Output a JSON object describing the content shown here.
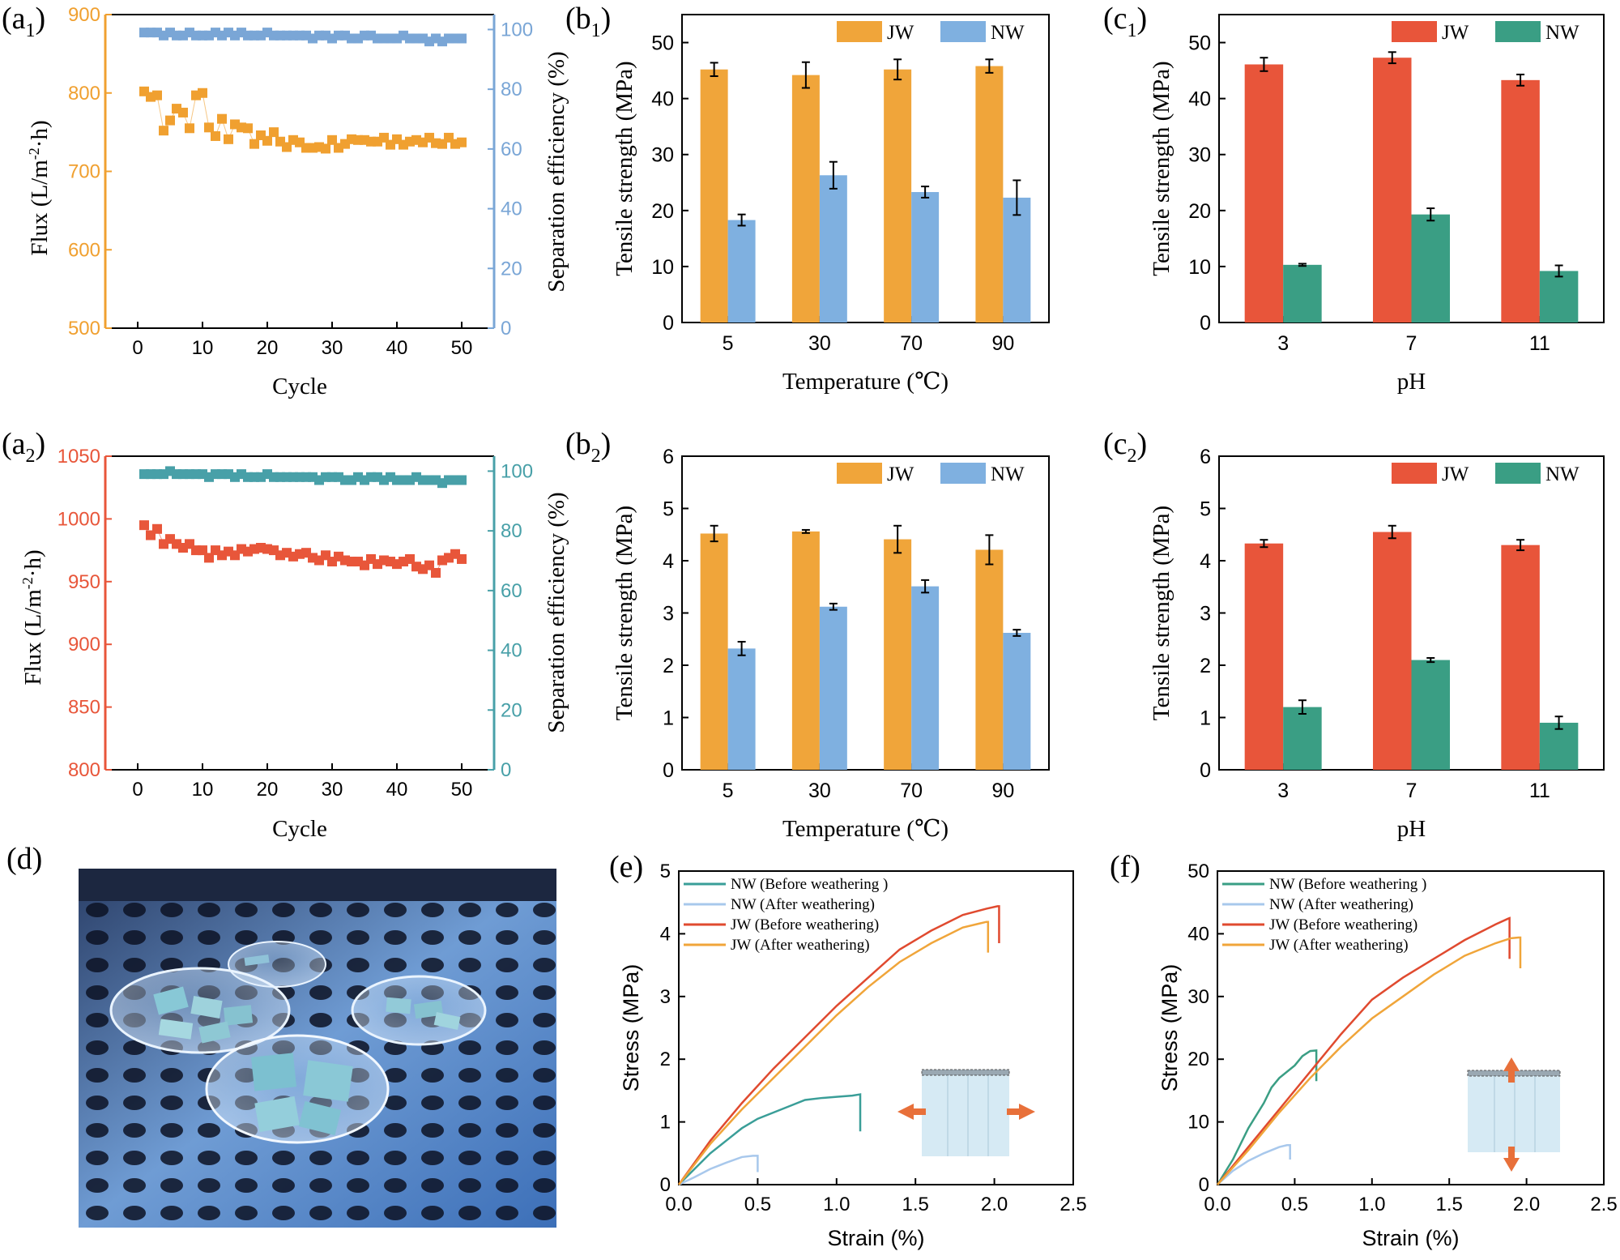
{
  "panels": {
    "a1": {
      "label": "(a",
      "label_sub": "1",
      "label_close": ")",
      "xlabel": "Cycle",
      "ylabel_left": "Flux (L/m",
      "ylabel_left_sup": "-2",
      "ylabel_left_tail": "·h)",
      "ylabel_right": "Separation efficiency (%)",
      "color_flux": "#f0a030",
      "color_eff": "#7aa6d6",
      "x_ticks": [
        0,
        10,
        20,
        30,
        40,
        50
      ],
      "y_left_ticks": [
        500,
        600,
        700,
        800,
        900
      ],
      "y_right_ticks": [
        0,
        20,
        40,
        60,
        80,
        100
      ]
    },
    "a2": {
      "label": "(a",
      "label_sub": "2",
      "label_close": ")",
      "xlabel": "Cycle",
      "ylabel_left": "Flux (L/m",
      "ylabel_left_sup": "-2",
      "ylabel_left_tail": "·h)",
      "ylabel_right": "Separation efficiency (%)",
      "color_flux": "#e8563a",
      "color_eff": "#48a0a8",
      "x_ticks": [
        0,
        10,
        20,
        30,
        40,
        50
      ],
      "y_left_ticks": [
        800,
        850,
        900,
        950,
        1000,
        1050
      ],
      "y_right_ticks": [
        0,
        20,
        40,
        60,
        80,
        100
      ]
    },
    "b1": {
      "label": "(b",
      "label_sub": "1",
      "label_close": ")"
    },
    "b2": {
      "label": "(b",
      "label_sub": "2",
      "label_close": ")"
    },
    "c1": {
      "label": "(c",
      "label_sub": "1",
      "label_close": ")"
    },
    "c2": {
      "label": "(c",
      "label_sub": "2",
      "label_close": ")"
    },
    "d": {
      "label": "(d)",
      "image_description": "Petri dishes with JW and NW membrane samples placed on a perforated metal shelf under blue light"
    },
    "e": {
      "label": "(e)"
    },
    "f": {
      "label": "(f)"
    }
  },
  "chart_data": [
    {
      "id": "a1",
      "type": "scatter",
      "title": "",
      "xlabel": "Cycle",
      "ylabel": "Flux (L/m-2·h)",
      "y2label": "Separation efficiency (%)",
      "xlim": [
        -5,
        55
      ],
      "ylim": [
        500,
        900
      ],
      "y2lim": [
        0,
        105
      ],
      "x": [
        1,
        2,
        3,
        4,
        5,
        6,
        7,
        8,
        9,
        10,
        11,
        12,
        13,
        14,
        15,
        16,
        17,
        18,
        19,
        20,
        21,
        22,
        23,
        24,
        25,
        26,
        27,
        28,
        29,
        30,
        31,
        32,
        33,
        34,
        35,
        36,
        37,
        38,
        39,
        40,
        41,
        42,
        43,
        44,
        45,
        46,
        47,
        48,
        49,
        50
      ],
      "series": [
        {
          "name": "Flux",
          "axis": "left",
          "values": [
            802,
            795,
            797,
            752,
            765,
            780,
            775,
            755,
            797,
            800,
            756,
            745,
            767,
            741,
            760,
            756,
            755,
            735,
            746,
            739,
            750,
            738,
            731,
            740,
            737,
            730,
            730,
            731,
            729,
            740,
            730,
            735,
            741,
            740,
            740,
            738,
            738,
            743,
            734,
            741,
            734,
            738,
            740,
            737,
            743,
            736,
            735,
            743,
            735,
            737
          ]
        },
        {
          "name": "Separation efficiency",
          "axis": "right",
          "values": [
            99,
            99,
            99,
            98,
            99,
            98,
            98,
            99,
            98,
            98,
            98,
            99,
            98,
            99,
            98,
            99,
            98,
            98,
            98,
            99,
            98,
            98,
            98,
            98,
            98,
            98,
            97,
            98,
            98,
            97,
            98,
            98,
            97,
            97,
            98,
            98,
            97,
            97,
            97,
            97,
            98,
            97,
            97,
            97,
            96,
            97,
            96,
            97,
            97,
            97
          ]
        }
      ]
    },
    {
      "id": "a2",
      "type": "scatter",
      "title": "",
      "xlabel": "Cycle",
      "ylabel": "Flux (L/m-2·h)",
      "y2label": "Separation efficiency (%)",
      "xlim": [
        -5,
        55
      ],
      "ylim": [
        800,
        1050
      ],
      "y2lim": [
        0,
        105
      ],
      "x": [
        1,
        2,
        3,
        4,
        5,
        6,
        7,
        8,
        9,
        10,
        11,
        12,
        13,
        14,
        15,
        16,
        17,
        18,
        19,
        20,
        21,
        22,
        23,
        24,
        25,
        26,
        27,
        28,
        29,
        30,
        31,
        32,
        33,
        34,
        35,
        36,
        37,
        38,
        39,
        40,
        41,
        42,
        43,
        44,
        45,
        46,
        47,
        48,
        49,
        50
      ],
      "series": [
        {
          "name": "Flux",
          "axis": "left",
          "values": [
            995,
            987,
            992,
            980,
            984,
            980,
            977,
            980,
            975,
            975,
            969,
            975,
            971,
            974,
            971,
            976,
            974,
            976,
            977,
            976,
            975,
            971,
            973,
            970,
            972,
            973,
            969,
            967,
            971,
            966,
            970,
            967,
            966,
            966,
            963,
            968,
            964,
            967,
            966,
            964,
            966,
            968,
            962,
            960,
            963,
            957,
            967,
            969,
            972,
            968
          ]
        },
        {
          "name": "Separation efficiency",
          "axis": "right",
          "values": [
            99,
            99,
            99,
            99,
            100,
            99,
            99,
            99,
            99,
            99,
            98,
            99,
            99,
            99,
            98,
            99,
            98,
            98,
            98,
            99,
            98,
            98,
            98,
            98,
            98,
            98,
            98,
            97,
            98,
            98,
            98,
            97,
            97,
            98,
            97,
            98,
            98,
            97,
            98,
            97,
            97,
            97,
            98,
            97,
            97,
            97,
            96,
            97,
            97,
            97
          ]
        }
      ]
    },
    {
      "id": "b1",
      "type": "bar",
      "title": "",
      "xlabel": "Temperature (℃)",
      "ylabel": "Tensile strength (MPa)",
      "categories": [
        "5",
        "30",
        "70",
        "90"
      ],
      "ylim": [
        0,
        55
      ],
      "yticks": [
        0,
        10,
        20,
        30,
        40,
        50
      ],
      "legend": "top-right",
      "series": [
        {
          "name": "JW",
          "color": "#f0a53a",
          "values": [
            45.2,
            44.2,
            45.2,
            45.8
          ],
          "errors": [
            1.2,
            2.3,
            1.8,
            1.2
          ]
        },
        {
          "name": "NW",
          "color": "#7fb0e0",
          "values": [
            18.3,
            26.3,
            23.3,
            22.3
          ],
          "errors": [
            1.0,
            2.4,
            1.0,
            3.1
          ]
        }
      ]
    },
    {
      "id": "b2",
      "type": "bar",
      "title": "",
      "xlabel": "Temperature (℃)",
      "ylabel": "Tensile strength (MPa)",
      "categories": [
        "5",
        "30",
        "70",
        "90"
      ],
      "ylim": [
        0,
        6
      ],
      "yticks": [
        0,
        1,
        2,
        3,
        4,
        5,
        6
      ],
      "legend": "top-right",
      "series": [
        {
          "name": "JW",
          "color": "#f0a53a",
          "values": [
            4.52,
            4.56,
            4.41,
            4.21
          ],
          "errors": [
            0.15,
            0.03,
            0.26,
            0.28
          ]
        },
        {
          "name": "NW",
          "color": "#7fb0e0",
          "values": [
            2.32,
            3.12,
            3.51,
            2.62
          ],
          "errors": [
            0.13,
            0.06,
            0.12,
            0.06
          ]
        }
      ]
    },
    {
      "id": "c1",
      "type": "bar",
      "title": "",
      "xlabel": "pH",
      "ylabel": "Tensile strength (MPa)",
      "categories": [
        "3",
        "7",
        "11"
      ],
      "ylim": [
        0,
        55
      ],
      "yticks": [
        0,
        10,
        20,
        30,
        40,
        50
      ],
      "legend": "top-right",
      "series": [
        {
          "name": "JW",
          "color": "#e8553a",
          "values": [
            46.1,
            47.3,
            43.3
          ],
          "errors": [
            1.2,
            1.0,
            1.0
          ]
        },
        {
          "name": "NW",
          "color": "#3a9e84",
          "values": [
            10.3,
            19.3,
            9.2
          ],
          "errors": [
            0.2,
            1.1,
            1.0
          ]
        }
      ]
    },
    {
      "id": "c2",
      "type": "bar",
      "title": "",
      "xlabel": "pH",
      "ylabel": "Tensile strength (MPa)",
      "categories": [
        "3",
        "7",
        "11"
      ],
      "ylim": [
        0,
        6
      ],
      "yticks": [
        0,
        1,
        2,
        3,
        4,
        5,
        6
      ],
      "legend": "top-right",
      "series": [
        {
          "name": "JW",
          "color": "#e8553a",
          "values": [
            4.33,
            4.55,
            4.3
          ],
          "errors": [
            0.07,
            0.12,
            0.1
          ]
        },
        {
          "name": "NW",
          "color": "#3a9e84",
          "values": [
            1.2,
            2.1,
            0.9
          ],
          "errors": [
            0.13,
            0.04,
            0.12
          ]
        }
      ]
    },
    {
      "id": "e",
      "type": "line",
      "title": "",
      "xlabel": "Strain (%)",
      "ylabel": "Stress (MPa)",
      "xlim": [
        0,
        2.5
      ],
      "ylim": [
        0,
        5
      ],
      "xticks": [
        0.0,
        0.5,
        1.0,
        1.5,
        2.0,
        2.5
      ],
      "yticks": [
        0,
        1,
        2,
        3,
        4,
        5
      ],
      "legend": "top-left",
      "series": [
        {
          "name": "NW (Before weathering )",
          "color": "#3a9e98",
          "x": [
            0,
            0.1,
            0.2,
            0.3,
            0.4,
            0.5,
            0.6,
            0.7,
            0.8,
            0.9,
            1.0,
            1.1,
            1.15,
            1.15
          ],
          "y": [
            0,
            0.25,
            0.5,
            0.7,
            0.9,
            1.05,
            1.15,
            1.25,
            1.35,
            1.38,
            1.4,
            1.42,
            1.44,
            0.85
          ]
        },
        {
          "name": "NW (After weathering)",
          "color": "#a8c8ec",
          "x": [
            0,
            0.1,
            0.2,
            0.3,
            0.4,
            0.47,
            0.5,
            0.5
          ],
          "y": [
            0,
            0.12,
            0.25,
            0.35,
            0.44,
            0.46,
            0.46,
            0.2
          ]
        },
        {
          "name": "JW (Before weathering)",
          "color": "#e04a2f",
          "x": [
            0,
            0.2,
            0.4,
            0.6,
            0.8,
            1.0,
            1.2,
            1.4,
            1.6,
            1.8,
            1.95,
            2.02,
            2.03,
            2.03
          ],
          "y": [
            0,
            0.7,
            1.3,
            1.85,
            2.35,
            2.85,
            3.3,
            3.75,
            4.05,
            4.3,
            4.4,
            4.44,
            4.44,
            3.85
          ]
        },
        {
          "name": "JW (After weathering)",
          "color": "#f0a53a",
          "x": [
            0,
            0.2,
            0.4,
            0.6,
            0.8,
            1.0,
            1.2,
            1.4,
            1.6,
            1.8,
            1.9,
            1.95,
            1.96,
            1.96
          ],
          "y": [
            0,
            0.65,
            1.2,
            1.7,
            2.2,
            2.7,
            3.15,
            3.55,
            3.85,
            4.1,
            4.16,
            4.19,
            4.19,
            3.7
          ]
        }
      ]
    },
    {
      "id": "f",
      "type": "line",
      "title": "",
      "xlabel": "Strain (%)",
      "ylabel": "Stress (MPa)",
      "xlim": [
        0,
        2.5
      ],
      "ylim": [
        0,
        50
      ],
      "xticks": [
        0.0,
        0.5,
        1.0,
        1.5,
        2.0,
        2.5
      ],
      "yticks": [
        0,
        10,
        20,
        30,
        40,
        50
      ],
      "legend": "top-left",
      "series": [
        {
          "name": "NW (Before weathering )",
          "color": "#3a9e84",
          "x": [
            0,
            0.1,
            0.2,
            0.3,
            0.35,
            0.4,
            0.5,
            0.55,
            0.6,
            0.64,
            0.64
          ],
          "y": [
            0,
            4,
            9,
            13,
            15.5,
            17,
            19,
            20.5,
            21.3,
            21.4,
            16.5
          ]
        },
        {
          "name": "NW (After weathering)",
          "color": "#a8c8ec",
          "x": [
            0,
            0.1,
            0.2,
            0.3,
            0.4,
            0.45,
            0.47,
            0.47
          ],
          "y": [
            0,
            2.2,
            3.8,
            5,
            6,
            6.3,
            6.3,
            4
          ]
        },
        {
          "name": "JW (Before weathering)",
          "color": "#e04a2f",
          "x": [
            0,
            0.2,
            0.4,
            0.6,
            0.8,
            1.0,
            1.2,
            1.4,
            1.6,
            1.8,
            1.88,
            1.89,
            1.89
          ],
          "y": [
            0,
            6,
            12,
            18,
            24,
            29.5,
            33,
            36,
            39,
            41.5,
            42.4,
            42.5,
            36
          ]
        },
        {
          "name": "JW (After weathering)",
          "color": "#f0a53a",
          "x": [
            0,
            0.2,
            0.4,
            0.6,
            0.8,
            1.0,
            1.2,
            1.4,
            1.6,
            1.8,
            1.9,
            1.95,
            1.96,
            1.96
          ],
          "y": [
            0,
            5.5,
            11.5,
            17,
            22,
            26.5,
            30,
            33.5,
            36.5,
            38.5,
            39.3,
            39.4,
            39.4,
            34.5
          ]
        }
      ]
    }
  ]
}
